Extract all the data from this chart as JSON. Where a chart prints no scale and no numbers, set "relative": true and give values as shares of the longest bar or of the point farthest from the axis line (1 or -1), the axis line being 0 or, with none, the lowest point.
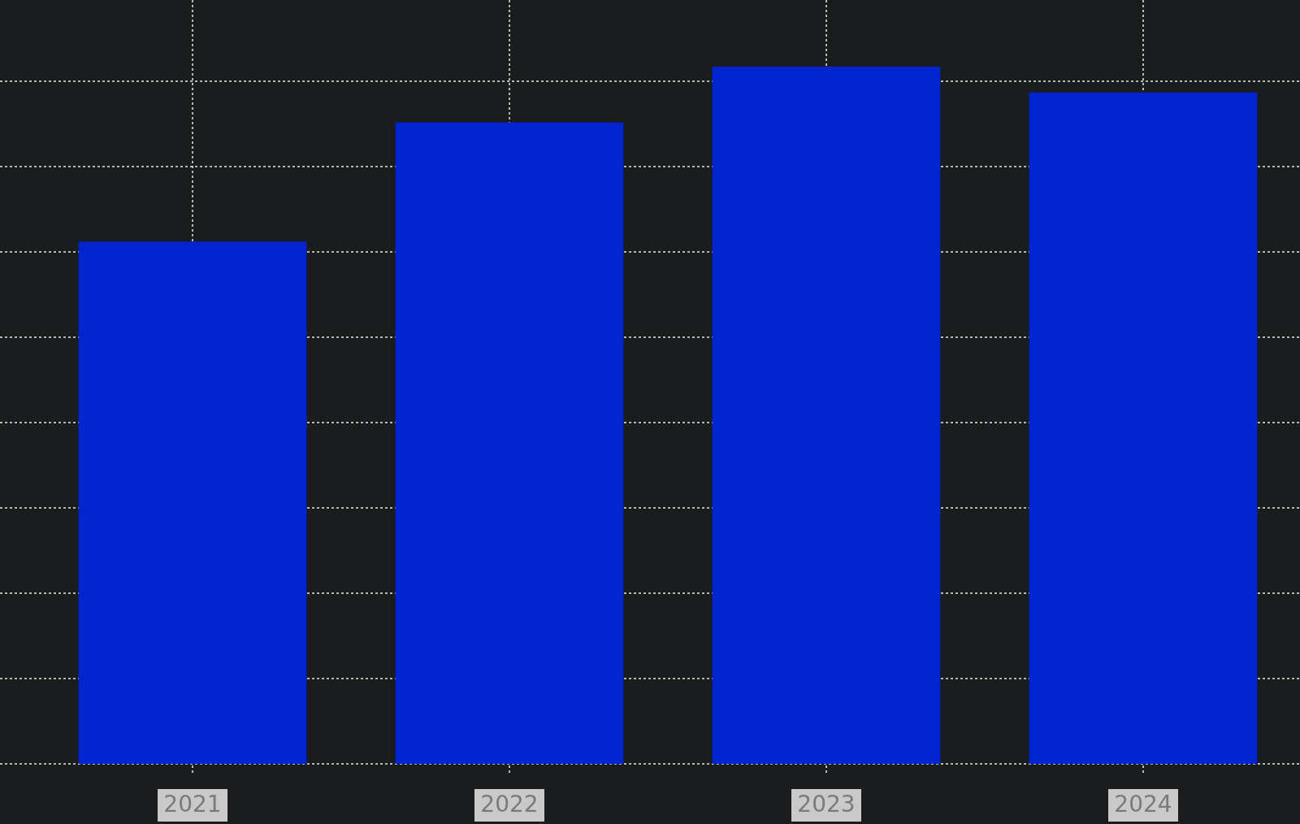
{
  "chart_data": {
    "type": "bar",
    "categories": [
      "2021",
      "2022",
      "2023",
      "2024"
    ],
    "values": [
      0.749,
      0.92,
      1,
      0.963
    ],
    "color": "#0025d0",
    "relative": true,
    "grid": true
  }
}
